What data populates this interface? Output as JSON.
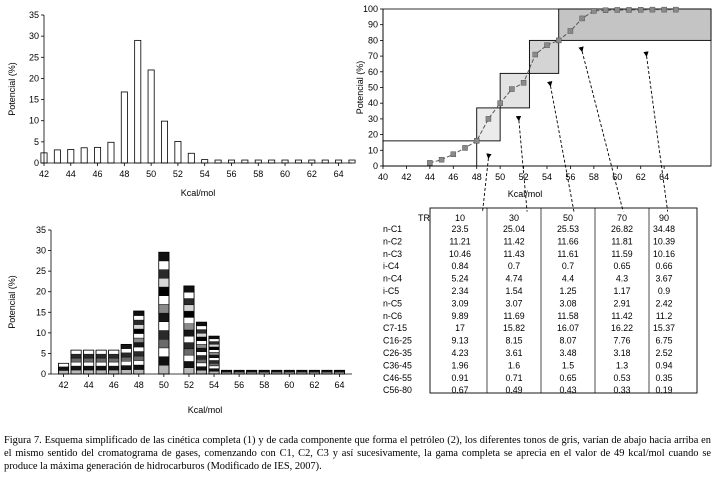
{
  "chart_data": [
    {
      "type": "bar",
      "x": [
        42,
        43,
        44,
        45,
        46,
        47,
        48,
        49,
        50,
        51,
        52,
        53,
        54,
        55,
        56,
        57,
        58,
        59,
        60,
        61,
        62,
        63,
        64,
        65
      ],
      "values": [
        2.4,
        3.1,
        3.2,
        3.6,
        3.7,
        4.9,
        16.8,
        29,
        22,
        9.9,
        5.1,
        2.3,
        0.8,
        0.7,
        0.7,
        0.7,
        0.7,
        0.7,
        0.7,
        0.7,
        0.7,
        0.7,
        0.7,
        0.7
      ],
      "xlabel": "Kcal/mol",
      "ylabel": "Potencial (%)",
      "xlim": [
        42,
        65
      ],
      "ylim": [
        0,
        35
      ],
      "xticks": [
        "42",
        "44",
        "46",
        "48",
        "50",
        "52",
        "54",
        "56",
        "58",
        "60",
        "62",
        "64"
      ],
      "yticks": [
        "0",
        "5",
        "10",
        "15",
        "20",
        "25",
        "30",
        "35"
      ],
      "grid": false
    },
    {
      "type": "line",
      "x": [
        44,
        45,
        46,
        47,
        48,
        49,
        50,
        51,
        52,
        53,
        54,
        55,
        56,
        57,
        58,
        59,
        60,
        61,
        62,
        63,
        64,
        65
      ],
      "y": [
        2,
        4,
        7.5,
        11.5,
        16,
        30,
        40,
        49,
        53,
        71,
        77,
        80,
        86,
        94,
        98.8,
        99.2,
        99.4,
        99.4,
        99.5,
        99.6,
        99.6,
        99.6
      ],
      "xlabel": "Kcal/mol",
      "ylabel": "Potencial (%)",
      "xlim": [
        40,
        68
      ],
      "ylim": [
        0,
        100
      ],
      "xticks": [
        "40",
        "42",
        "44",
        "46",
        "48",
        "50",
        "52",
        "54",
        "56",
        "58",
        "60",
        "62",
        "64"
      ],
      "yticks": [
        "0",
        "10",
        "20",
        "30",
        "40",
        "50",
        "60",
        "70",
        "80",
        "90",
        "100"
      ],
      "steps": [
        {
          "x0": 40,
          "x1": 48,
          "y0": 0,
          "y1": 16,
          "fill": "#ffffff"
        },
        {
          "x0": 48,
          "x1": 50,
          "y0": 16,
          "y1": 37,
          "fill": "#ebebeb"
        },
        {
          "x0": 50,
          "x1": 52.5,
          "y0": 37,
          "y1": 59,
          "fill": "#e3e3e3"
        },
        {
          "x0": 52.5,
          "x1": 55,
          "y0": 59,
          "y1": 80,
          "fill": "#d4d4d4"
        },
        {
          "x0": 55,
          "x1": 68,
          "y0": 80,
          "y1": 100,
          "fill": "#c4c4c4"
        }
      ],
      "arrows": [
        {
          "from_x": 49,
          "from_y": 5,
          "to_x": 48.5,
          "to_y": -29
        },
        {
          "from_x": 51.6,
          "from_y": 29,
          "to_x": 52.3,
          "to_y": -29
        },
        {
          "from_x": 54.3,
          "from_y": 51,
          "to_x": 56.3,
          "to_y": -29
        },
        {
          "from_x": 57,
          "from_y": 73,
          "to_x": 60.5,
          "to_y": -29
        },
        {
          "from_x": 62.5,
          "from_y": 70,
          "to_x": 64.3,
          "to_y": -29
        }
      ],
      "grid": false
    },
    {
      "type": "bar",
      "stacked": true,
      "x": [
        42,
        43,
        44,
        45,
        46,
        47,
        48,
        49,
        50,
        51,
        52,
        53,
        54,
        55,
        56,
        57,
        58,
        59,
        60,
        61,
        62,
        63,
        64
      ],
      "totals": [
        2.6,
        5.8,
        5.8,
        5.8,
        5.8,
        7.2,
        15.3,
        0,
        29.6,
        0,
        21.4,
        12.6,
        9.2,
        0.9,
        0.9,
        0.9,
        0.9,
        0.9,
        0.9,
        0.9,
        0.9,
        0.9,
        0.9
      ],
      "segment_shades": [
        "#b8b8b8",
        "#111111",
        "#ffffff",
        "#6a6a6a",
        "#2a2a2a",
        "#ffffff",
        "#161616",
        "#8a8a8a",
        "#ffffff",
        "#000000",
        "#d5d5d5",
        "#2a2a2a",
        "#ffffff",
        "#101010"
      ],
      "xlabel": "Kcal/mol",
      "ylabel": "Potencial (%)",
      "xlim": [
        41,
        65
      ],
      "ylim": [
        0,
        35
      ],
      "xticks": [
        "42",
        "44",
        "46",
        "48",
        "50",
        "52",
        "54",
        "56",
        "58",
        "60",
        "62",
        "64"
      ],
      "yticks": [
        "0",
        "5",
        "10",
        "15",
        "20",
        "25",
        "30",
        "35"
      ],
      "grid": false
    },
    {
      "type": "table",
      "corner": "TR",
      "columns": [
        "10",
        "30",
        "50",
        "70",
        "90"
      ],
      "rows": [
        {
          "label": "n-C1",
          "values": [
            "23.5",
            "25.04",
            "25.53",
            "26.82",
            "34.48"
          ]
        },
        {
          "label": "n-C2",
          "values": [
            "11.21",
            "11.42",
            "11.66",
            "11.81",
            "10.39"
          ]
        },
        {
          "label": "n-C3",
          "values": [
            "10.46",
            "11.43",
            "11.61",
            "11.59",
            "10.16"
          ]
        },
        {
          "label": "i-C4",
          "values": [
            "0.84",
            "0.7",
            "0.7",
            "0.65",
            "0.66"
          ]
        },
        {
          "label": "n-C4",
          "values": [
            "5.24",
            "4.74",
            "4.4",
            "4.3",
            "3.67"
          ]
        },
        {
          "label": "i-C5",
          "values": [
            "2.34",
            "1.54",
            "1.25",
            "1.17",
            "0.9"
          ]
        },
        {
          "label": "n-C5",
          "values": [
            "3.09",
            "3.07",
            "3.08",
            "2.91",
            "2.42"
          ]
        },
        {
          "label": "n-C6",
          "values": [
            "9.89",
            "11.69",
            "11.58",
            "11.42",
            "11.2"
          ]
        },
        {
          "label": "C7-15",
          "values": [
            "17",
            "15.82",
            "16.07",
            "16.22",
            "15.37"
          ]
        },
        {
          "label": "C16-25",
          "values": [
            "9.13",
            "8.15",
            "8.07",
            "7.76",
            "6.75"
          ]
        },
        {
          "label": "C26-35",
          "values": [
            "4.23",
            "3.61",
            "3.48",
            "3.18",
            "2.52"
          ]
        },
        {
          "label": "C36-45",
          "values": [
            "1.96",
            "1.6",
            "1.5",
            "1.3",
            "0.94"
          ]
        },
        {
          "label": "C46-55",
          "values": [
            "0.91",
            "0.71",
            "0.65",
            "0.53",
            "0.35"
          ]
        },
        {
          "label": "C56-80",
          "values": [
            "0.67",
            "0.49",
            "0.43",
            "0.33",
            "0.19"
          ]
        }
      ]
    }
  ],
  "caption": "Figura 7. Esquema simplificado de las cinética completa (1) y de cada componente que forma el petróleo (2), los diferentes tonos de gris, varían de abajo hacia arriba en el mismo sentido del cromatograma de gases, comenzando con C1, C2, C3 y así sucesivamente, la gama completa se aprecia en el valor de 49 kcal/mol cuando se produce la máxima generación de hidrocarburos (Modificado de IES, 2007)."
}
